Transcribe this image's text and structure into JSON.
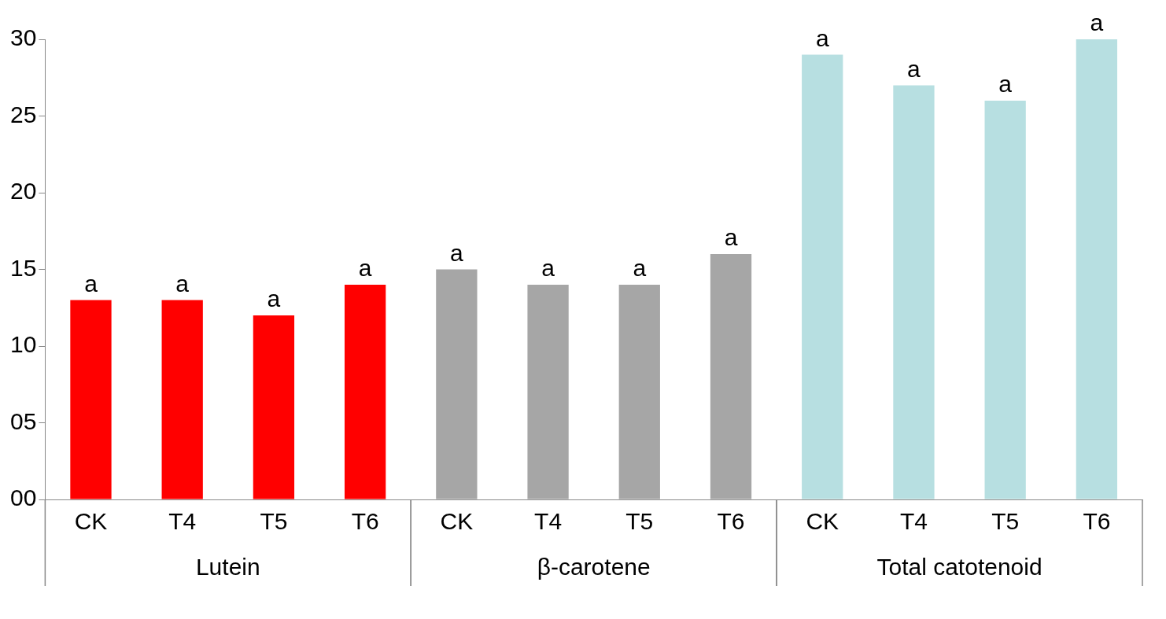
{
  "chart_data": {
    "type": "bar",
    "categories": [
      "CK",
      "T4",
      "T5",
      "T6",
      "CK",
      "T4",
      "T5",
      "T6",
      "CK",
      "T4",
      "T5",
      "T6"
    ],
    "series": [
      {
        "name": "Lutein",
        "color": "#ff0000",
        "values": [
          13,
          13,
          12,
          14,
          null,
          null,
          null,
          null,
          null,
          null,
          null,
          null
        ],
        "value_labels": [
          "a",
          "a",
          "a",
          "a",
          null,
          null,
          null,
          null,
          null,
          null,
          null,
          null
        ]
      },
      {
        "name": "β-carotene",
        "color": "#a6a6a6",
        "values": [
          null,
          null,
          null,
          null,
          15,
          14,
          14,
          16,
          null,
          null,
          null,
          null
        ],
        "value_labels": [
          null,
          null,
          null,
          null,
          "a",
          "a",
          "a",
          "a",
          null,
          null,
          null,
          null
        ]
      },
      {
        "name": "Total catotenoid",
        "color": "#b7dfe1",
        "values": [
          null,
          null,
          null,
          null,
          null,
          null,
          null,
          null,
          29,
          27,
          26,
          30
        ],
        "value_labels": [
          null,
          null,
          null,
          null,
          null,
          null,
          null,
          null,
          "a",
          "a",
          "a",
          "a"
        ]
      }
    ],
    "ylim": [
      0,
      30
    ],
    "yticks": [
      {
        "value": 0,
        "label": "00"
      },
      {
        "value": 5,
        "label": "05"
      },
      10,
      15,
      20,
      25,
      30
    ],
    "grid": false,
    "legend": false
  }
}
